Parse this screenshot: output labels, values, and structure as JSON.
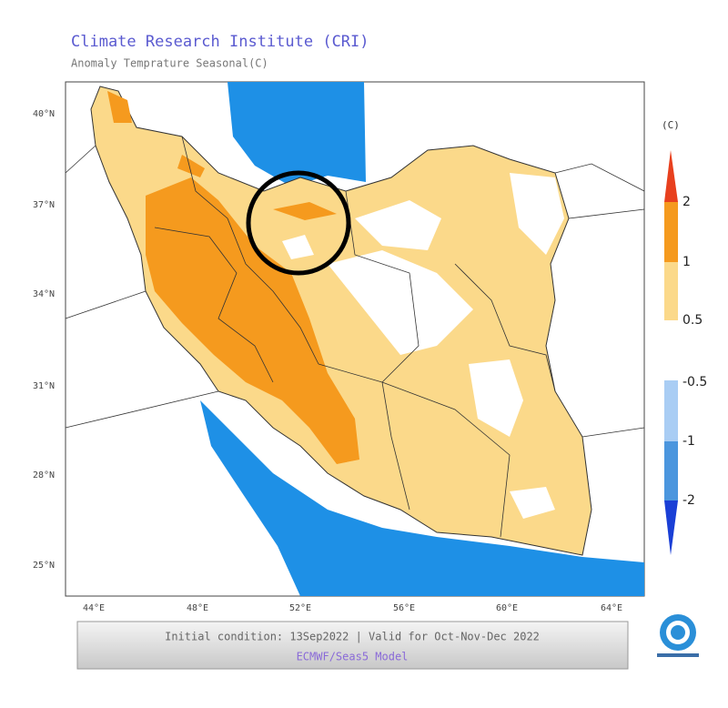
{
  "header": {
    "title": "Climate Research Institute (CRI)",
    "subtitle": "Anomaly Temprature Seasonal(C)"
  },
  "map": {
    "lat_labels": [
      "40°N",
      "37°N",
      "34°N",
      "31°N",
      "28°N",
      "25°N"
    ],
    "lon_labels": [
      "44°E",
      "48°E",
      "52°E",
      "56°E",
      "60°E",
      "64°E"
    ]
  },
  "legend": {
    "unit": "(C)",
    "labels": [
      "2",
      "1",
      "0.5",
      "-0.5",
      "-1",
      "-2"
    ]
  },
  "footer": {
    "line1": "Initial condition: 13Sep2022 | Valid for Oct-Nov-Dec 2022",
    "line2": "ECMWF/Seas5 Model"
  }
}
